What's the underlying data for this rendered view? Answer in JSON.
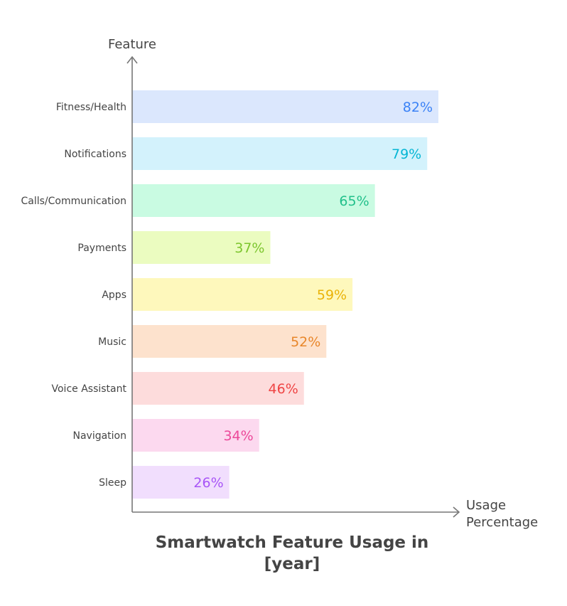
{
  "chart_data": {
    "type": "bar",
    "orientation": "horizontal",
    "title_lines": [
      "Smartwatch Feature Usage in",
      "[year]"
    ],
    "ylabel": "Feature",
    "xlabel_lines": [
      "Usage",
      "Percentage"
    ],
    "xlim": [
      0,
      100
    ],
    "grid": false,
    "categories": [
      "Fitness/Health",
      "Notifications",
      "Calls/Communication",
      "Payments",
      "Apps",
      "Music",
      "Voice Assistant",
      "Navigation",
      "Sleep"
    ],
    "values": [
      82,
      79,
      65,
      37,
      59,
      52,
      46,
      34,
      26
    ],
    "value_labels": [
      "82%",
      "79%",
      "65%",
      "37%",
      "59%",
      "52%",
      "46%",
      "34%",
      "26%"
    ],
    "bar_colors": [
      "#dbe7fd",
      "#d3f2fc",
      "#c9fbe2",
      "#ebfcc0",
      "#fef8bc",
      "#fde2cd",
      "#fddcdc",
      "#fcd9ef",
      "#f1defd"
    ],
    "label_colors": [
      "#3b82f6",
      "#06b6d4",
      "#22c08b",
      "#7cc62e",
      "#eab308",
      "#e8862a",
      "#ef4444",
      "#ec4899",
      "#a855f7"
    ]
  }
}
